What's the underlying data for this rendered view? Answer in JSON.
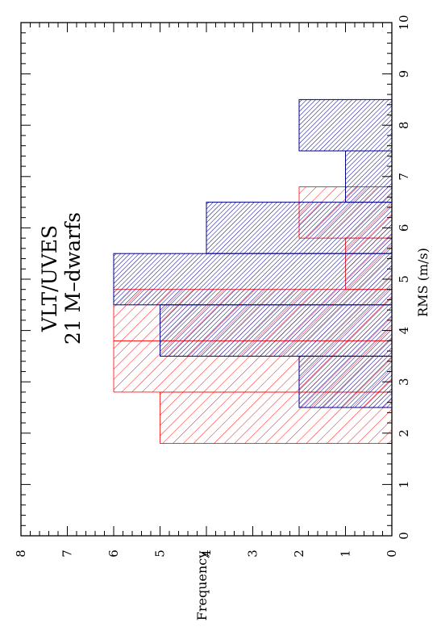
{
  "chart_data": {
    "type": "bar",
    "orientation": "rotated-90-ccw",
    "title_lines": [
      "VLT/UVES",
      "21 M–dwarfs"
    ],
    "xlabel": "RMS (m/s)",
    "ylabel": "Frequency",
    "xlim": [
      0,
      10
    ],
    "ylim": [
      0,
      8
    ],
    "x_ticks": [
      "0",
      "1",
      "2",
      "3",
      "4",
      "5",
      "6",
      "7",
      "8",
      "9",
      "10"
    ],
    "y_ticks": [
      "0",
      "1",
      "2",
      "3",
      "4",
      "5",
      "6",
      "7",
      "8"
    ],
    "grid": false,
    "series": [
      {
        "color": "#ff0000",
        "hatch": "diagonal",
        "bins": [
          {
            "x0": 1.8,
            "x1": 2.8,
            "value": 5
          },
          {
            "x0": 2.8,
            "x1": 3.8,
            "value": 6
          },
          {
            "x0": 3.8,
            "x1": 4.8,
            "value": 6
          },
          {
            "x0": 4.8,
            "x1": 5.8,
            "value": 1
          },
          {
            "x0": 5.8,
            "x1": 6.8,
            "value": 2
          }
        ]
      },
      {
        "color": "#00008b",
        "hatch": "diagonal-dense",
        "bins": [
          {
            "x0": 2.5,
            "x1": 3.5,
            "value": 2
          },
          {
            "x0": 3.5,
            "x1": 4.5,
            "value": 5
          },
          {
            "x0": 4.5,
            "x1": 5.5,
            "value": 6
          },
          {
            "x0": 5.5,
            "x1": 6.5,
            "value": 4
          },
          {
            "x0": 6.5,
            "x1": 7.5,
            "value": 1
          },
          {
            "x0": 7.5,
            "x1": 8.5,
            "value": 2
          }
        ]
      }
    ]
  }
}
